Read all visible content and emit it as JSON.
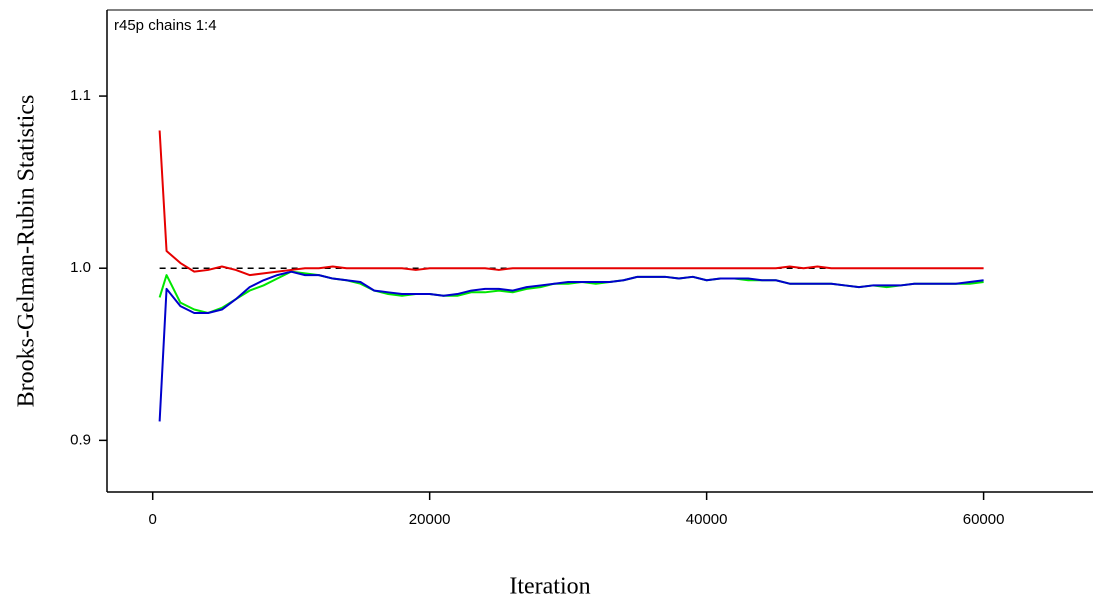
{
  "chart_data": {
    "type": "line",
    "title": "r45p chains 1:4",
    "x_label": "Iteration",
    "y_label": "Brooks-Gelman-Rubin Statistics",
    "xlim": [
      -3300,
      67900
    ],
    "ylim": [
      0.87,
      1.15
    ],
    "xticks": [
      0,
      20000,
      40000,
      60000
    ],
    "yticks": [
      0.9,
      {
        "value": 1,
        "label": "1.0"
      },
      1.1
    ],
    "hline": {
      "value": 1,
      "color": "#000000",
      "dashed": true
    },
    "x": [
      500,
      1000,
      2000,
      3000,
      4000,
      5000,
      6000,
      7000,
      8000,
      9000,
      10000,
      11000,
      12000,
      13000,
      14000,
      15000,
      16000,
      17000,
      18000,
      19000,
      20000,
      21000,
      22000,
      23000,
      24000,
      25000,
      26000,
      27000,
      28000,
      29000,
      30000,
      31000,
      32000,
      33000,
      34000,
      35000,
      36000,
      37000,
      38000,
      39000,
      40000,
      41000,
      42000,
      43000,
      44000,
      45000,
      46000,
      47000,
      48000,
      49000,
      50000,
      51000,
      52000,
      53000,
      54000,
      55000,
      56000,
      57000,
      58000,
      59000,
      60000
    ],
    "series": [
      {
        "color": "#00e600",
        "values": [
          0.983,
          0.996,
          0.98,
          0.976,
          0.974,
          0.977,
          0.982,
          0.987,
          0.99,
          0.994,
          0.998,
          0.997,
          0.996,
          0.994,
          0.993,
          0.991,
          0.987,
          0.985,
          0.984,
          0.985,
          0.985,
          0.984,
          0.984,
          0.986,
          0.986,
          0.987,
          0.986,
          0.988,
          0.989,
          0.991,
          0.991,
          0.992,
          0.991,
          0.992,
          0.993,
          0.995,
          0.995,
          0.995,
          0.994,
          0.995,
          0.993,
          0.994,
          0.994,
          0.993,
          0.993,
          0.993,
          0.991,
          0.991,
          0.991,
          0.991,
          0.99,
          0.989,
          0.99,
          0.989,
          0.99,
          0.991,
          0.991,
          0.991,
          0.991,
          0.991,
          0.992
        ]
      },
      {
        "color": "#0000cc",
        "values": [
          0.911,
          0.988,
          0.978,
          0.974,
          0.974,
          0.976,
          0.982,
          0.989,
          0.993,
          0.996,
          0.998,
          0.996,
          0.996,
          0.994,
          0.993,
          0.992,
          0.987,
          0.986,
          0.985,
          0.985,
          0.985,
          0.984,
          0.985,
          0.987,
          0.988,
          0.988,
          0.987,
          0.989,
          0.99,
          0.991,
          0.992,
          0.992,
          0.992,
          0.992,
          0.993,
          0.995,
          0.995,
          0.995,
          0.994,
          0.995,
          0.993,
          0.994,
          0.994,
          0.994,
          0.993,
          0.993,
          0.991,
          0.991,
          0.991,
          0.991,
          0.99,
          0.989,
          0.99,
          0.99,
          0.99,
          0.991,
          0.991,
          0.991,
          0.991,
          0.992,
          0.993
        ]
      },
      {
        "color": "#e60000",
        "values": [
          1.08,
          1.01,
          1.003,
          0.998,
          0.999,
          1.001,
          0.999,
          0.996,
          0.997,
          0.998,
          0.999,
          1.0,
          1.0,
          1.001,
          1.0,
          1.0,
          1.0,
          1.0,
          1.0,
          0.999,
          1.0,
          1.0,
          1.0,
          1.0,
          1.0,
          0.999,
          1.0,
          1.0,
          1.0,
          1.0,
          1.0,
          1.0,
          1.0,
          1.0,
          1.0,
          1.0,
          1.0,
          1.0,
          1.0,
          1.0,
          1.0,
          1.0,
          1.0,
          1.0,
          1.0,
          1.0,
          1.001,
          1.0,
          1.001,
          1.0,
          1.0,
          1.0,
          1.0,
          1.0,
          1.0,
          1.0,
          1.0,
          1.0,
          1.0,
          1.0,
          1.0
        ]
      }
    ]
  }
}
